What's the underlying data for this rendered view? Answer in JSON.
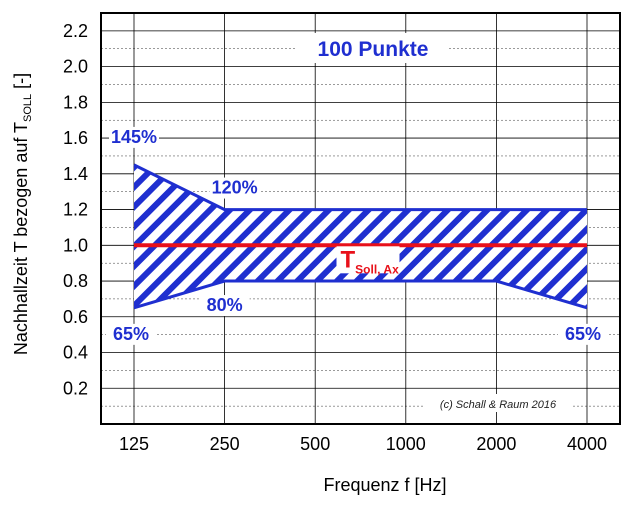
{
  "chart_data": {
    "type": "area",
    "title": "100 Punkte",
    "xlabel": "Frequenz f [Hz]",
    "ylabel": {
      "main": "Nachhallzeit T bezogen auf T",
      "sub": "SOLL",
      "unit": " [-]"
    },
    "categories": [
      "125",
      "250",
      "500",
      "1000",
      "2000",
      "4000"
    ],
    "ylim": [
      0,
      2.3
    ],
    "yticks": [
      {
        "value": 0.2,
        "label": "0.2"
      },
      {
        "value": 0.4,
        "label": "0.4"
      },
      {
        "value": 0.6,
        "label": "0.6"
      },
      {
        "value": 0.8,
        "label": "0.8"
      },
      {
        "value": 1.0,
        "label": "1.0"
      },
      {
        "value": 1.2,
        "label": "1.2"
      },
      {
        "value": 1.4,
        "label": "1.4"
      },
      {
        "value": 1.6,
        "label": "1.6"
      },
      {
        "value": 1.8,
        "label": "1.8"
      },
      {
        "value": 2.0,
        "label": "2.0"
      },
      {
        "value": 2.2,
        "label": "2.2"
      }
    ],
    "grid": true,
    "upper_bound": [
      1.45,
      1.2,
      1.2,
      1.2,
      1.2,
      1.2
    ],
    "lower_bound": [
      0.65,
      0.8,
      0.8,
      0.8,
      0.8,
      0.65
    ],
    "target_line": {
      "values": [
        1.0,
        1.0,
        1.0,
        1.0,
        1.0,
        1.0
      ],
      "label_main": "T",
      "label_sub": "Soll, Ax"
    },
    "annotations": [
      {
        "text": "145%",
        "x": "125",
        "y": 1.45
      },
      {
        "text": "120%",
        "x": "250",
        "y": 1.2
      },
      {
        "text": "80%",
        "x": "250",
        "y": 0.8
      },
      {
        "text": "65%",
        "x": "125",
        "y": 0.65
      },
      {
        "text": "65%",
        "x": "4000",
        "y": 0.65
      }
    ],
    "copyright": "(c) Schall & Raum 2016",
    "colors": {
      "band": "#1f2fd0",
      "target": "#e8101a",
      "text_blue": "#1f2fd0",
      "grid": "#000000"
    }
  }
}
